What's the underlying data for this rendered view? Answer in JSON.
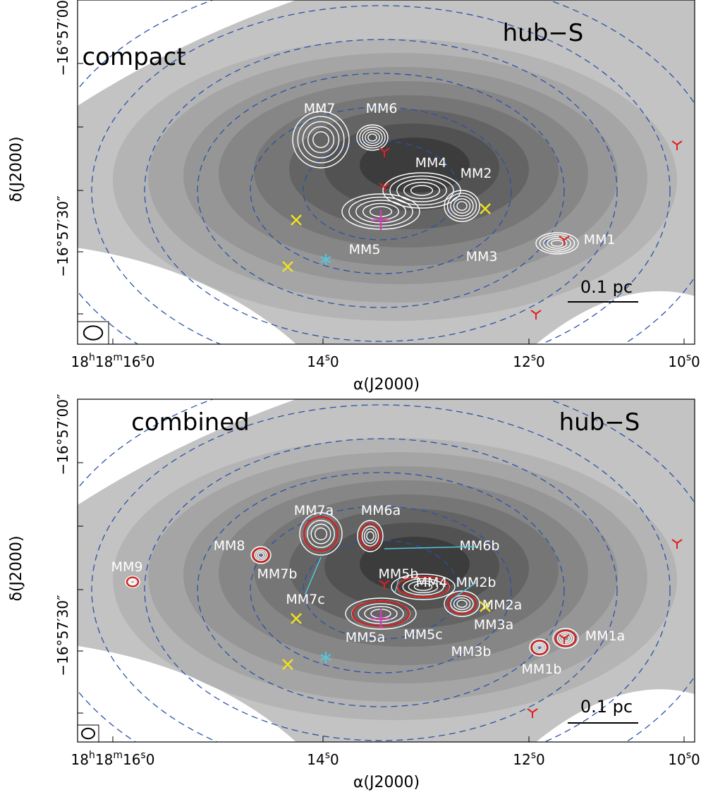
{
  "panels": [
    {
      "label": "compact",
      "region": "hub−S",
      "scale_bar": "0.1 pc",
      "sources": [
        "MM7",
        "MM6",
        "MM4",
        "MM2",
        "MM5",
        "MM3",
        "MM1"
      ],
      "x_axis_title": "α(J2000)",
      "y_axis_title": "δ(J2000)",
      "x_ticks": [
        [
          "18",
          "h",
          "18",
          "m",
          "16",
          "s",
          "0"
        ],
        [
          "14",
          "s",
          "0"
        ],
        [
          "12",
          "s",
          "0"
        ],
        [
          "10",
          "s",
          "0"
        ]
      ],
      "y_ticks": [
        "−16°57′00″",
        "−16°57′30″"
      ]
    },
    {
      "label": "combined",
      "region": "hub−S",
      "scale_bar": "0.1 pc",
      "sources": [
        "MM7a",
        "MM6a",
        "MM6b",
        "MM8",
        "MM9",
        "MM7b",
        "MM7c",
        "MM5b",
        "MM4",
        "MM2b",
        "MM2a",
        "MM3a",
        "MM5a",
        "MM5c",
        "MM3b",
        "MM1a",
        "MM1b"
      ],
      "x_axis_title": "α(J2000)",
      "y_axis_title": "δ(J2000)",
      "x_ticks": [
        [
          "18",
          "h",
          "18",
          "m",
          "16",
          "s",
          "0"
        ],
        [
          "14",
          "s",
          "0"
        ],
        [
          "12",
          "s",
          "0"
        ],
        [
          "10",
          "s",
          "0"
        ]
      ],
      "y_ticks": [
        "−16°57′00″",
        "−16°57′30″"
      ]
    }
  ]
}
